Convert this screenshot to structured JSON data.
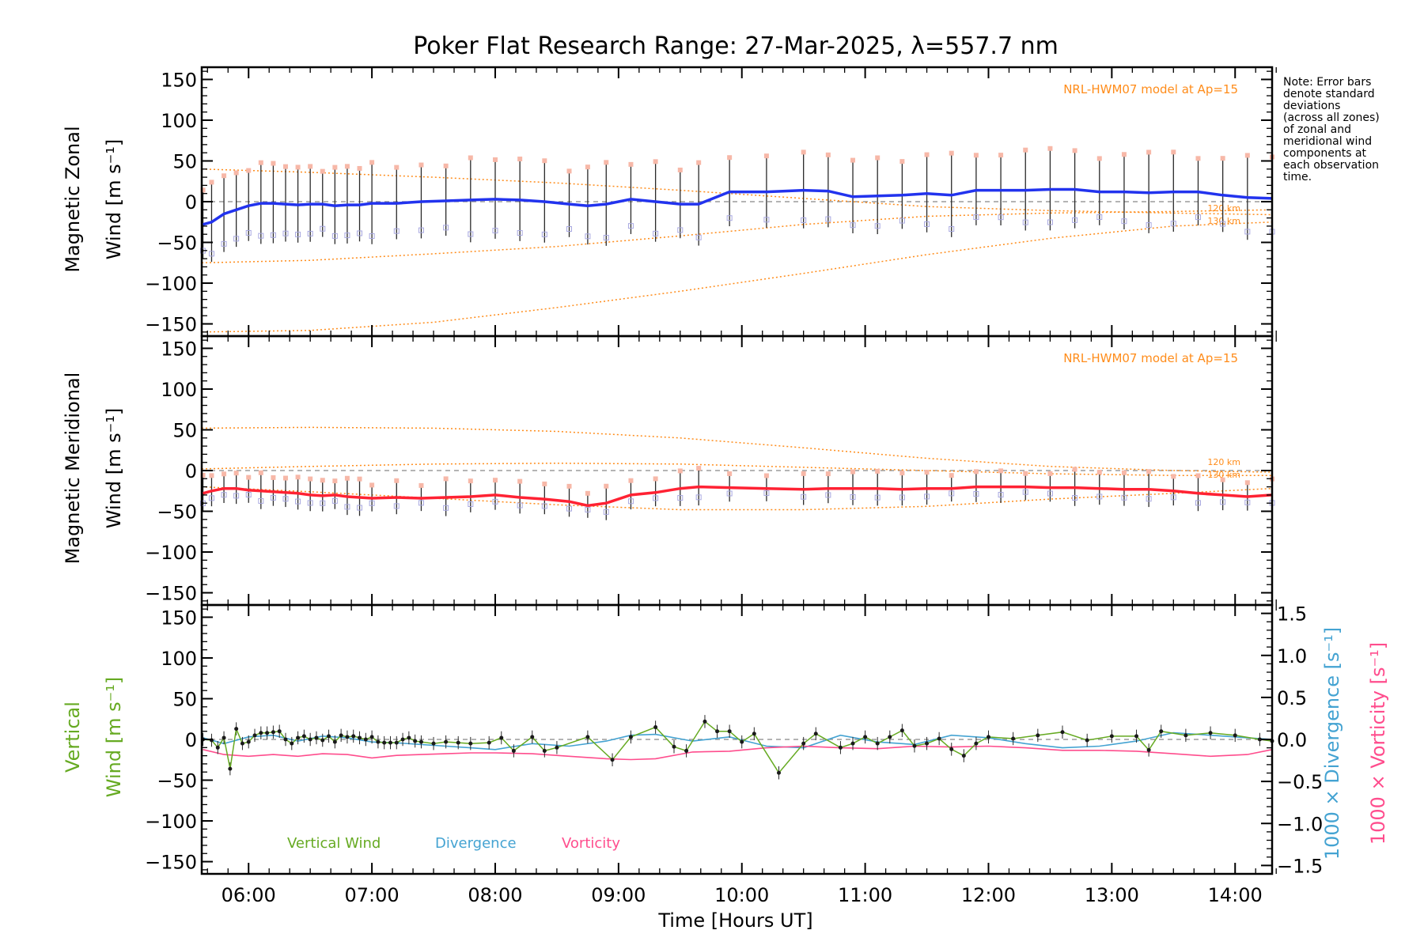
{
  "title": "Poker Flat Research Range: 27-Mar-2025, λ=557.7 nm",
  "note_lines": [
    "Note: Error bars",
    "denote standard",
    "deviations",
    "(across all zones)",
    "of zonal and",
    "meridional wind",
    "components at",
    "each observation",
    "time."
  ],
  "xlabel": "Time [Hours UT]",
  "model_label": "NRL-HWM07 model at Ap=15",
  "colors": {
    "zonal": "#2233ee",
    "meridional": "#ff2233",
    "vertical": "#66aa22",
    "divergence": "#44a3d2",
    "vorticity": "#ff4d8d",
    "model": "#ff8c1a",
    "errbar": "#2a2a2a"
  },
  "chart_data": [
    {
      "type": "line",
      "panel": "zonal",
      "ylabel_line1": "Magnetic Zonal",
      "ylabel_line2": "Wind [m s⁻¹]",
      "ylim": [
        -165,
        165
      ],
      "xlim": [
        5.62,
        14.3
      ],
      "xticks": [
        "06:00",
        "07:00",
        "08:00",
        "09:00",
        "10:00",
        "11:00",
        "12:00",
        "13:00",
        "14:00"
      ],
      "yticks": [
        "−150",
        "−100",
        "−50",
        "0",
        "50",
        "100",
        "150"
      ],
      "model_heights": [
        "120 km",
        "130 km"
      ],
      "series": [
        {
          "x": [
            5.63,
            5.7,
            5.8,
            5.9,
            6.0,
            6.1,
            6.2,
            6.3,
            6.4,
            6.5,
            6.6,
            6.7,
            6.8,
            6.9,
            7.0,
            7.2,
            7.4,
            7.6,
            7.8,
            8.0,
            8.2,
            8.4,
            8.6,
            8.75,
            8.9,
            9.1,
            9.3,
            9.5,
            9.65,
            9.9,
            10.2,
            10.5,
            10.7,
            10.9,
            11.1,
            11.3,
            11.5,
            11.7,
            11.9,
            12.1,
            12.3,
            12.5,
            12.7,
            12.9,
            13.1,
            13.3,
            13.5,
            13.7,
            13.9,
            14.1,
            14.3
          ],
          "values": [
            -28,
            -25,
            -15,
            -10,
            -5,
            -2,
            -2,
            -3,
            -4,
            -3,
            -3,
            -5,
            -4,
            -4,
            -2,
            -2,
            0,
            1,
            2,
            3,
            2,
            0,
            -3,
            -5,
            -3,
            3,
            0,
            -3,
            -3,
            12,
            12,
            14,
            13,
            6,
            7,
            8,
            10,
            8,
            14,
            14,
            14,
            15,
            15,
            12,
            12,
            11,
            12,
            12,
            8,
            5,
            4
          ]
        }
      ],
      "model_series": [
        {
          "x": [
            5.62,
            6.5,
            7.5,
            8.5,
            9.5,
            10.5,
            11.5,
            12.5,
            13.5,
            14.3
          ],
          "values": [
            40,
            36,
            30,
            23,
            14,
            4,
            -6,
            -11,
            -14,
            -16
          ]
        },
        {
          "x": [
            5.62,
            6.5,
            7.5,
            8.5,
            9.5,
            10.5,
            11.5,
            12.5,
            13.5,
            14.3
          ],
          "values": [
            -75,
            -72,
            -64,
            -55,
            -42,
            -28,
            -18,
            -14,
            -12,
            -10
          ]
        },
        {
          "x": [
            5.62,
            6.5,
            7.5,
            8.5,
            9.5,
            10.5,
            11.5,
            12.5,
            13.5,
            14.3
          ],
          "values": [
            -160,
            -158,
            -148,
            -130,
            -110,
            -88,
            -65,
            -45,
            -30,
            -25
          ]
        }
      ]
    },
    {
      "type": "line",
      "panel": "meridional",
      "ylabel_line1": "Magnetic Meridional",
      "ylabel_line2": "Wind [m s⁻¹]",
      "ylim": [
        -165,
        165
      ],
      "xlim": [
        5.62,
        14.3
      ],
      "xticks": [
        "06:00",
        "07:00",
        "08:00",
        "09:00",
        "10:00",
        "11:00",
        "12:00",
        "13:00",
        "14:00"
      ],
      "yticks": [
        "−150",
        "−100",
        "−50",
        "0",
        "50",
        "100",
        "150"
      ],
      "model_heights": [
        "120 km",
        "130 km"
      ],
      "series": [
        {
          "x": [
            5.63,
            5.7,
            5.8,
            5.9,
            6.0,
            6.1,
            6.2,
            6.3,
            6.4,
            6.5,
            6.6,
            6.7,
            6.8,
            6.9,
            7.0,
            7.2,
            7.4,
            7.6,
            7.8,
            8.0,
            8.2,
            8.4,
            8.6,
            8.75,
            8.9,
            9.1,
            9.3,
            9.5,
            9.65,
            9.9,
            10.2,
            10.5,
            10.7,
            10.9,
            11.1,
            11.3,
            11.5,
            11.7,
            11.9,
            12.1,
            12.3,
            12.5,
            12.7,
            12.9,
            13.1,
            13.3,
            13.5,
            13.7,
            13.9,
            14.1,
            14.3
          ],
          "values": [
            -28,
            -25,
            -22,
            -22,
            -24,
            -25,
            -26,
            -27,
            -28,
            -30,
            -31,
            -30,
            -32,
            -33,
            -34,
            -33,
            -34,
            -33,
            -32,
            -30,
            -33,
            -35,
            -38,
            -43,
            -40,
            -30,
            -27,
            -22,
            -20,
            -21,
            -22,
            -23,
            -22,
            -22,
            -22,
            -23,
            -22,
            -22,
            -20,
            -20,
            -20,
            -21,
            -21,
            -22,
            -23,
            -23,
            -25,
            -28,
            -30,
            -32,
            -30
          ]
        }
      ],
      "model_series": [
        {
          "x": [
            5.62,
            6.5,
            7.5,
            8.5,
            9.5,
            10.5,
            11.5,
            12.5,
            13.5,
            14.3
          ],
          "values": [
            52,
            53,
            52,
            48,
            40,
            28,
            15,
            5,
            0,
            -2
          ]
        },
        {
          "x": [
            5.62,
            6.5,
            7.5,
            8.5,
            9.5,
            10.5,
            11.5,
            12.5,
            13.5,
            14.3
          ],
          "values": [
            2,
            5,
            8,
            9,
            8,
            4,
            0,
            -4,
            -6,
            -6
          ]
        },
        {
          "x": [
            5.62,
            6.5,
            7.5,
            8.5,
            9.5,
            10.5,
            11.5,
            12.5,
            13.5,
            14.3
          ],
          "values": [
            -20,
            -26,
            -34,
            -42,
            -48,
            -48,
            -44,
            -35,
            -28,
            -22
          ]
        }
      ]
    },
    {
      "type": "line",
      "panel": "vertical",
      "ylabel_line1": "Vertical",
      "ylabel_line2": "Wind [m s⁻¹]",
      "ylim": [
        -165,
        165
      ],
      "xlim": [
        5.62,
        14.3
      ],
      "xticks": [
        "06:00",
        "07:00",
        "08:00",
        "09:00",
        "10:00",
        "11:00",
        "12:00",
        "13:00",
        "14:00"
      ],
      "yticks": [
        "−150",
        "−100",
        "−50",
        "0",
        "50",
        "100",
        "150"
      ],
      "right_axis": {
        "ylim": [
          -1.6,
          1.6
        ],
        "ticks": [
          "−1.5",
          "−1.0",
          "−0.5",
          "0.0",
          "0.5",
          "1.0",
          "1.5"
        ],
        "label_div": "1000 × Divergence [s⁻¹]",
        "label_vort": "1000 × Vorticity [s⁻¹]"
      },
      "legend": [
        "Vertical Wind",
        "Divergence",
        "Vorticity"
      ],
      "series": [
        {
          "name": "Vertical Wind",
          "x": [
            5.63,
            5.7,
            5.75,
            5.8,
            5.85,
            5.9,
            5.95,
            6.0,
            6.05,
            6.1,
            6.15,
            6.2,
            6.25,
            6.3,
            6.35,
            6.4,
            6.45,
            6.5,
            6.55,
            6.6,
            6.65,
            6.7,
            6.75,
            6.8,
            6.85,
            6.9,
            6.95,
            7.0,
            7.05,
            7.1,
            7.15,
            7.2,
            7.25,
            7.3,
            7.35,
            7.4,
            7.5,
            7.6,
            7.7,
            7.8,
            7.95,
            8.05,
            8.15,
            8.3,
            8.4,
            8.5,
            8.75,
            8.95,
            9.1,
            9.3,
            9.45,
            9.55,
            9.7,
            9.8,
            9.9,
            10.0,
            10.1,
            10.3,
            10.5,
            10.6,
            10.8,
            10.9,
            11.0,
            11.1,
            11.2,
            11.3,
            11.4,
            11.5,
            11.6,
            11.7,
            11.8,
            11.9,
            12.0,
            12.2,
            12.4,
            12.6,
            12.8,
            13.0,
            13.2,
            13.3,
            13.4,
            13.6,
            13.8,
            14.0,
            14.2,
            14.3
          ],
          "values": [
            0,
            -1,
            -10,
            2,
            -36,
            13,
            -5,
            -3,
            5,
            8,
            8,
            9,
            10,
            0,
            -5,
            2,
            4,
            0,
            2,
            -1,
            4,
            -3,
            5,
            3,
            4,
            2,
            0,
            3,
            -3,
            -4,
            -4,
            -4,
            0,
            2,
            -2,
            -3,
            -5,
            -3,
            -4,
            -5,
            -4,
            2,
            -14,
            3,
            -14,
            -10,
            3,
            -25,
            3,
            15,
            -9,
            -14,
            22,
            10,
            10,
            -3,
            7,
            -41,
            -5,
            7,
            -10,
            -5,
            3,
            -5,
            3,
            11,
            -8,
            -5,
            1,
            -12,
            -20,
            -5,
            3,
            1,
            5,
            9,
            -1,
            4,
            4,
            -13,
            10,
            5,
            8,
            5,
            0,
            -2
          ]
        },
        {
          "name": "Divergence",
          "x": [
            5.63,
            5.8,
            6.0,
            6.2,
            6.4,
            6.6,
            6.8,
            7.0,
            7.2,
            7.4,
            7.6,
            7.8,
            8.0,
            8.3,
            8.6,
            8.9,
            9.1,
            9.3,
            9.6,
            9.9,
            10.2,
            10.5,
            10.8,
            11.1,
            11.4,
            11.7,
            12.0,
            12.3,
            12.6,
            12.9,
            13.2,
            13.5,
            13.8,
            14.1,
            14.3
          ],
          "values": [
            0.02,
            -0.05,
            0.03,
            0.05,
            -0.02,
            0.04,
            0.02,
            -0.03,
            -0.04,
            -0.06,
            -0.08,
            -0.1,
            -0.12,
            -0.05,
            -0.08,
            -0.02,
            0.05,
            0.06,
            -0.02,
            0.03,
            -0.08,
            -0.1,
            0.05,
            -0.03,
            -0.06,
            0.05,
            0.02,
            -0.05,
            -0.1,
            -0.08,
            -0.02,
            0.08,
            0.05,
            0.02,
            0.0
          ]
        },
        {
          "name": "Vorticity",
          "x": [
            5.63,
            5.8,
            6.0,
            6.2,
            6.4,
            6.6,
            6.8,
            7.0,
            7.2,
            7.4,
            7.6,
            7.8,
            8.0,
            8.3,
            8.6,
            8.9,
            9.1,
            9.3,
            9.6,
            9.9,
            10.2,
            10.5,
            10.8,
            11.1,
            11.4,
            11.7,
            12.0,
            12.3,
            12.6,
            12.9,
            13.2,
            13.5,
            13.8,
            14.1,
            14.3
          ],
          "values": [
            -0.12,
            -0.18,
            -0.2,
            -0.18,
            -0.2,
            -0.17,
            -0.18,
            -0.22,
            -0.19,
            -0.18,
            -0.17,
            -0.16,
            -0.16,
            -0.17,
            -0.2,
            -0.23,
            -0.24,
            -0.23,
            -0.15,
            -0.14,
            -0.1,
            -0.08,
            -0.1,
            -0.11,
            -0.08,
            -0.09,
            -0.08,
            -0.1,
            -0.13,
            -0.13,
            -0.14,
            -0.17,
            -0.2,
            -0.18,
            -0.12
          ]
        }
      ]
    }
  ]
}
